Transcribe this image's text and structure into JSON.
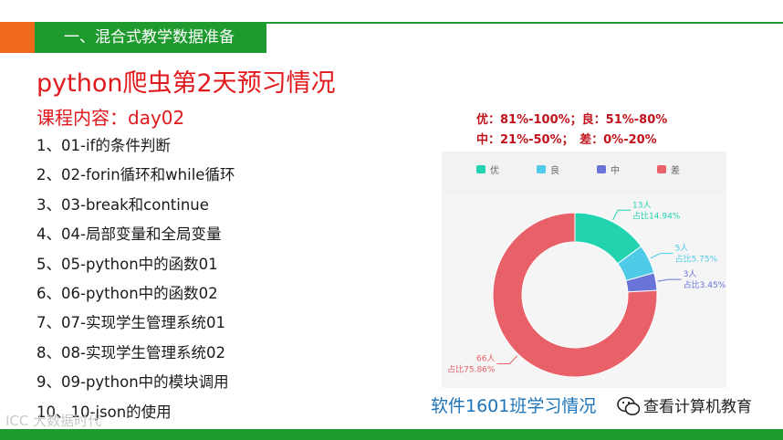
{
  "header": {
    "section_title": "一、混合式教学数据准备"
  },
  "slide": {
    "title": "python爬虫第2天预习情况",
    "course_label": "课程内容：day02",
    "lessons": [
      "1、01-if的条件判断",
      "2、02-forin循环和while循环",
      "3、03-break和continue",
      "4、04-局部变量和全局变量",
      "5、05-python中的函数01",
      "6、06-python中的函数02",
      "7、07-实现学生管理系统01",
      "8、08-实现学生管理系统02",
      "9、09-python中的模块调用",
      "10、10-json的使用"
    ]
  },
  "grading": {
    "line1": "优：81%-100%；良：51%-80%",
    "line2": "中：21%-50%；　差：0%-20%"
  },
  "caption": "软件1601班学习情况",
  "watermark": {
    "text": "查看计算机教育",
    "corner": "ICC 大数据时代"
  },
  "colors": {
    "you": "#22d3b0",
    "liang": "#4fcbe8",
    "zhong": "#6a74d8",
    "cha": "#e86068",
    "title_red": "#e2191c",
    "green": "#1f9a2e",
    "orange": "#ef6a1d"
  },
  "chart_data": {
    "type": "pie",
    "legend": [
      "优",
      "良",
      "中",
      "差"
    ],
    "slices": [
      {
        "name": "优",
        "count_label": "13人",
        "percent_label": "占比14.94%",
        "value": 13,
        "percent": 14.94
      },
      {
        "name": "良",
        "count_label": "5人",
        "percent_label": "占比5.75%",
        "value": 5,
        "percent": 5.75
      },
      {
        "name": "中",
        "count_label": "3人",
        "percent_label": "占比3.45%",
        "value": 3,
        "percent": 3.45
      },
      {
        "name": "差",
        "count_label": "66人",
        "percent_label": "占比75.86%",
        "value": 66,
        "percent": 75.86
      }
    ]
  }
}
